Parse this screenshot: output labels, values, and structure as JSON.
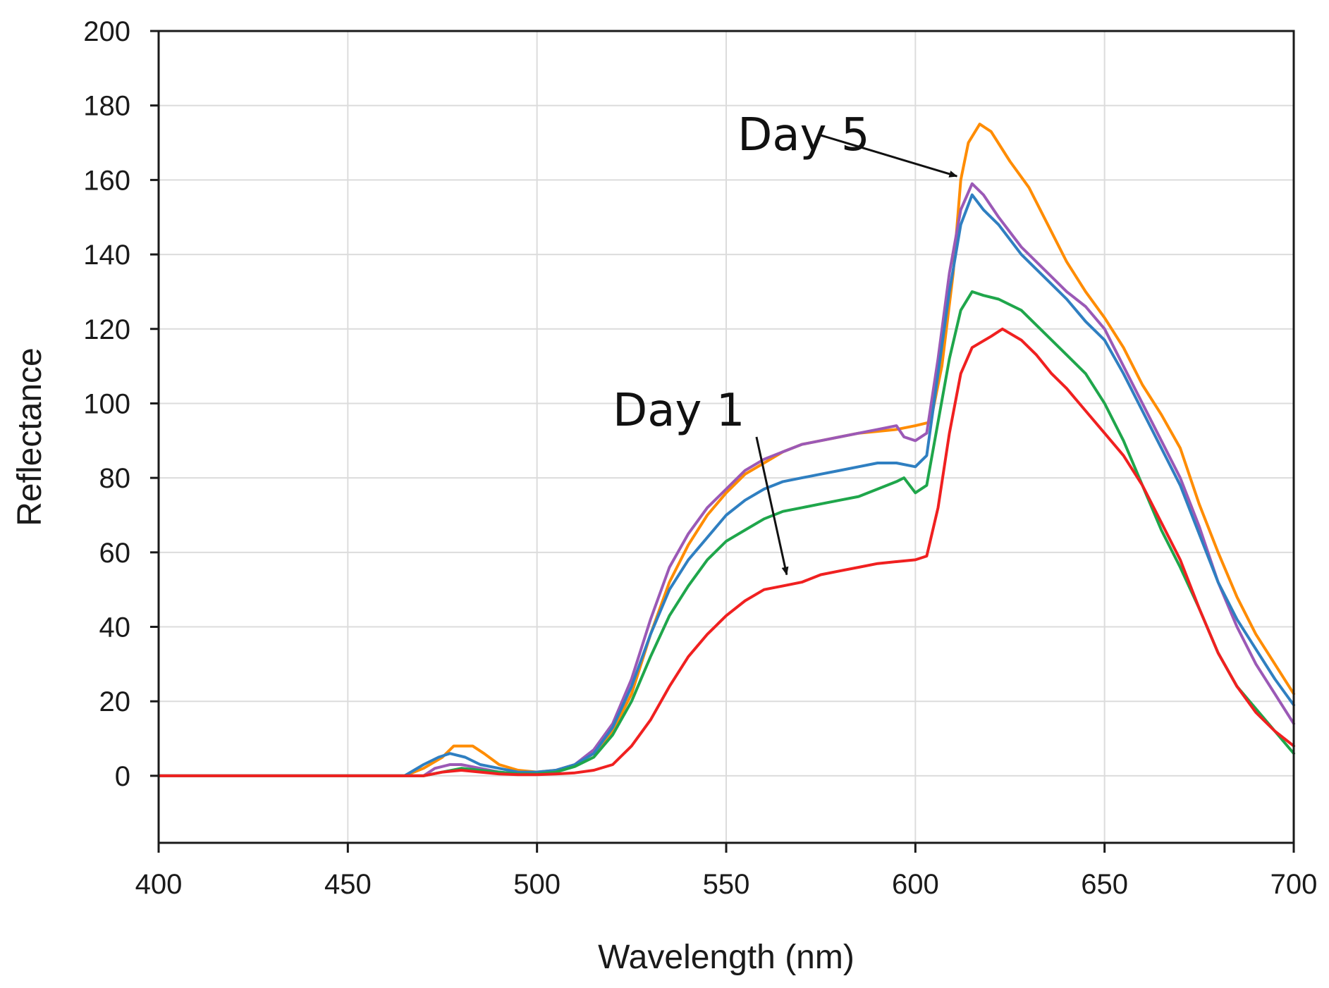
{
  "chart_data": {
    "type": "line",
    "title": "",
    "xlabel": "Wavelength (nm)",
    "ylabel": "Reflectance",
    "xlim": [
      400,
      700
    ],
    "ylim": [
      -18,
      200
    ],
    "xticks": [
      400,
      450,
      500,
      550,
      600,
      650,
      700
    ],
    "yticks": [
      0,
      20,
      40,
      60,
      80,
      100,
      120,
      140,
      160,
      180,
      200
    ],
    "grid": true,
    "legend": "none",
    "series": [
      {
        "name": "orange",
        "color": "#ff8c00",
        "points": [
          [
            400,
            0
          ],
          [
            465,
            0
          ],
          [
            470,
            2
          ],
          [
            475,
            5
          ],
          [
            478,
            8
          ],
          [
            483,
            8
          ],
          [
            486,
            6
          ],
          [
            490,
            3
          ],
          [
            495,
            1.5
          ],
          [
            500,
            1
          ],
          [
            505,
            1.5
          ],
          [
            510,
            3
          ],
          [
            515,
            6
          ],
          [
            520,
            12
          ],
          [
            525,
            22
          ],
          [
            530,
            38
          ],
          [
            535,
            52
          ],
          [
            540,
            62
          ],
          [
            545,
            70
          ],
          [
            550,
            76
          ],
          [
            555,
            81
          ],
          [
            560,
            84
          ],
          [
            565,
            87
          ],
          [
            570,
            89
          ],
          [
            575,
            90
          ],
          [
            580,
            91
          ],
          [
            585,
            92
          ],
          [
            590,
            92.5
          ],
          [
            595,
            93
          ],
          [
            600,
            94
          ],
          [
            604,
            95
          ],
          [
            607,
            110
          ],
          [
            610,
            135
          ],
          [
            612,
            160
          ],
          [
            614,
            170
          ],
          [
            617,
            175
          ],
          [
            620,
            173
          ],
          [
            625,
            165
          ],
          [
            630,
            158
          ],
          [
            635,
            148
          ],
          [
            640,
            138
          ],
          [
            645,
            130
          ],
          [
            650,
            123
          ],
          [
            655,
            115
          ],
          [
            660,
            105
          ],
          [
            665,
            97
          ],
          [
            670,
            88
          ],
          [
            675,
            73
          ],
          [
            680,
            60
          ],
          [
            685,
            48
          ],
          [
            690,
            38
          ],
          [
            695,
            30
          ],
          [
            700,
            22
          ]
        ]
      },
      {
        "name": "purple",
        "color": "#9b59b6",
        "points": [
          [
            400,
            0
          ],
          [
            470,
            0
          ],
          [
            473,
            2
          ],
          [
            477,
            3
          ],
          [
            480,
            3
          ],
          [
            485,
            2
          ],
          [
            490,
            1
          ],
          [
            495,
            0.5
          ],
          [
            500,
            0.5
          ],
          [
            505,
            1.5
          ],
          [
            510,
            3
          ],
          [
            515,
            7
          ],
          [
            520,
            14
          ],
          [
            525,
            26
          ],
          [
            530,
            42
          ],
          [
            535,
            56
          ],
          [
            540,
            65
          ],
          [
            545,
            72
          ],
          [
            550,
            77
          ],
          [
            555,
            82
          ],
          [
            560,
            85
          ],
          [
            565,
            87
          ],
          [
            570,
            89
          ],
          [
            575,
            90
          ],
          [
            580,
            91
          ],
          [
            585,
            92
          ],
          [
            590,
            93
          ],
          [
            595,
            94
          ],
          [
            597,
            91
          ],
          [
            600,
            90
          ],
          [
            603,
            92
          ],
          [
            606,
            112
          ],
          [
            609,
            135
          ],
          [
            612,
            152
          ],
          [
            615,
            159
          ],
          [
            618,
            156
          ],
          [
            622,
            150
          ],
          [
            628,
            142
          ],
          [
            635,
            135
          ],
          [
            640,
            130
          ],
          [
            645,
            126
          ],
          [
            650,
            120
          ],
          [
            655,
            110
          ],
          [
            660,
            100
          ],
          [
            665,
            90
          ],
          [
            670,
            80
          ],
          [
            675,
            67
          ],
          [
            680,
            52
          ],
          [
            685,
            40
          ],
          [
            690,
            30
          ],
          [
            695,
            22
          ],
          [
            700,
            14
          ]
        ]
      },
      {
        "name": "blue",
        "color": "#2f7fc1",
        "points": [
          [
            400,
            0
          ],
          [
            465,
            0
          ],
          [
            470,
            3
          ],
          [
            474,
            5
          ],
          [
            477,
            6
          ],
          [
            481,
            5
          ],
          [
            485,
            3
          ],
          [
            490,
            2
          ],
          [
            495,
            1
          ],
          [
            500,
            1
          ],
          [
            505,
            1.5
          ],
          [
            510,
            3
          ],
          [
            515,
            6
          ],
          [
            520,
            13
          ],
          [
            525,
            24
          ],
          [
            530,
            38
          ],
          [
            535,
            50
          ],
          [
            540,
            58
          ],
          [
            545,
            64
          ],
          [
            550,
            70
          ],
          [
            555,
            74
          ],
          [
            560,
            77
          ],
          [
            565,
            79
          ],
          [
            570,
            80
          ],
          [
            575,
            81
          ],
          [
            580,
            82
          ],
          [
            585,
            83
          ],
          [
            590,
            84
          ],
          [
            595,
            84
          ],
          [
            600,
            83
          ],
          [
            603,
            86
          ],
          [
            606,
            108
          ],
          [
            609,
            130
          ],
          [
            612,
            148
          ],
          [
            615,
            156
          ],
          [
            618,
            152
          ],
          [
            622,
            148
          ],
          [
            628,
            140
          ],
          [
            635,
            133
          ],
          [
            640,
            128
          ],
          [
            645,
            122
          ],
          [
            650,
            117
          ],
          [
            655,
            108
          ],
          [
            660,
            98
          ],
          [
            665,
            88
          ],
          [
            670,
            78
          ],
          [
            675,
            65
          ],
          [
            680,
            52
          ],
          [
            685,
            42
          ],
          [
            690,
            34
          ],
          [
            695,
            26
          ],
          [
            700,
            19
          ]
        ]
      },
      {
        "name": "green",
        "color": "#1fa64b",
        "points": [
          [
            400,
            0
          ],
          [
            470,
            0
          ],
          [
            475,
            1
          ],
          [
            480,
            2
          ],
          [
            485,
            1.5
          ],
          [
            490,
            1
          ],
          [
            495,
            0.5
          ],
          [
            500,
            0.5
          ],
          [
            505,
            1
          ],
          [
            510,
            2.5
          ],
          [
            515,
            5
          ],
          [
            520,
            11
          ],
          [
            525,
            20
          ],
          [
            530,
            32
          ],
          [
            535,
            43
          ],
          [
            540,
            51
          ],
          [
            545,
            58
          ],
          [
            550,
            63
          ],
          [
            555,
            66
          ],
          [
            560,
            69
          ],
          [
            565,
            71
          ],
          [
            570,
            72
          ],
          [
            575,
            73
          ],
          [
            580,
            74
          ],
          [
            585,
            75
          ],
          [
            590,
            77
          ],
          [
            595,
            79
          ],
          [
            597,
            80
          ],
          [
            600,
            76
          ],
          [
            603,
            78
          ],
          [
            606,
            95
          ],
          [
            609,
            112
          ],
          [
            612,
            125
          ],
          [
            615,
            130
          ],
          [
            618,
            129
          ],
          [
            622,
            128
          ],
          [
            628,
            125
          ],
          [
            635,
            118
          ],
          [
            640,
            113
          ],
          [
            645,
            108
          ],
          [
            650,
            100
          ],
          [
            655,
            90
          ],
          [
            660,
            78
          ],
          [
            665,
            66
          ],
          [
            670,
            56
          ],
          [
            675,
            45
          ],
          [
            680,
            33
          ],
          [
            685,
            24
          ],
          [
            690,
            18
          ],
          [
            695,
            12
          ],
          [
            700,
            6
          ]
        ]
      },
      {
        "name": "red",
        "color": "#f02020",
        "points": [
          [
            400,
            0
          ],
          [
            470,
            0
          ],
          [
            475,
            1
          ],
          [
            480,
            1.5
          ],
          [
            485,
            1
          ],
          [
            490,
            0.5
          ],
          [
            495,
            0.3
          ],
          [
            500,
            0.3
          ],
          [
            505,
            0.5
          ],
          [
            510,
            0.8
          ],
          [
            515,
            1.5
          ],
          [
            520,
            3
          ],
          [
            525,
            8
          ],
          [
            530,
            15
          ],
          [
            535,
            24
          ],
          [
            540,
            32
          ],
          [
            545,
            38
          ],
          [
            550,
            43
          ],
          [
            555,
            47
          ],
          [
            560,
            50
          ],
          [
            565,
            51
          ],
          [
            570,
            52
          ],
          [
            575,
            54
          ],
          [
            580,
            55
          ],
          [
            585,
            56
          ],
          [
            590,
            57
          ],
          [
            595,
            57.5
          ],
          [
            600,
            58
          ],
          [
            603,
            59
          ],
          [
            606,
            72
          ],
          [
            609,
            92
          ],
          [
            612,
            108
          ],
          [
            615,
            115
          ],
          [
            620,
            118
          ],
          [
            623,
            120
          ],
          [
            628,
            117
          ],
          [
            632,
            113
          ],
          [
            636,
            108
          ],
          [
            640,
            104
          ],
          [
            645,
            98
          ],
          [
            650,
            92
          ],
          [
            655,
            86
          ],
          [
            660,
            78
          ],
          [
            665,
            68
          ],
          [
            670,
            58
          ],
          [
            675,
            45
          ],
          [
            680,
            33
          ],
          [
            685,
            24
          ],
          [
            690,
            17
          ],
          [
            695,
            12
          ],
          [
            700,
            8
          ]
        ]
      }
    ],
    "annotations": [
      {
        "text": "Day 5",
        "text_x": 553,
        "text_y": 168,
        "arrow_from": [
          575,
          172
        ],
        "arrow_to": [
          611,
          161
        ]
      },
      {
        "text": "Day 1",
        "text_x": 520,
        "text_y": 94,
        "arrow_from": [
          558,
          91
        ],
        "arrow_to": [
          566,
          54
        ]
      }
    ]
  }
}
